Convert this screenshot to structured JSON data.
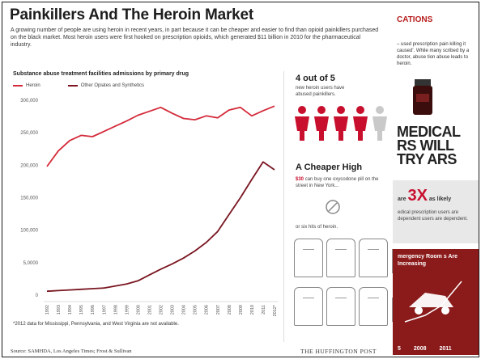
{
  "header": {
    "title": "Painkillers And The Heroin Market",
    "intro": "A growing number of people are using heroin in recent years, in part because it can be cheaper and easier to find than opioid painkillers purchased on the black market. Most heroin users were first hooked on prescription opioids, which generated $11 billion in 2010 for the pharmaceutical industry."
  },
  "colors": {
    "heroin": "#d42a3a",
    "opiates": "#7a1520",
    "accent": "#c8102e"
  },
  "chart_data": {
    "type": "line",
    "title": "Substance abuse treatment facilities admissions by primary drug",
    "categories": [
      "1992",
      "1993",
      "1994",
      "1995",
      "1996",
      "1997",
      "1998",
      "1999",
      "2000",
      "2001",
      "2002",
      "2003",
      "2004",
      "2005",
      "2006",
      "2007",
      "2008",
      "2009",
      "2010",
      "2011",
      "2012*"
    ],
    "series": [
      {
        "name": "Heroin",
        "values": [
          198000,
          222000,
          238000,
          246000,
          244000,
          252000,
          260000,
          268000,
          277000,
          283000,
          289000,
          280000,
          272000,
          270000,
          276000,
          273000,
          285000,
          289000,
          276000,
          284000,
          291000
        ]
      },
      {
        "name": "Other Opiates and Synthetics",
        "values": [
          6000,
          7000,
          8000,
          9000,
          10000,
          11000,
          14000,
          17000,
          22000,
          31000,
          40000,
          48000,
          57000,
          68000,
          81000,
          98000,
          124000,
          150000,
          178000,
          205000,
          193000
        ]
      }
    ],
    "yticks": [
      "300,000",
      "250,000",
      "200,000",
      "150,000",
      "100,000",
      "5,0000",
      "0"
    ],
    "ylim": [
      0,
      300000
    ],
    "grid": false,
    "legend": "top-left",
    "footnote": "*2012 data for Mississippi, Pennsylvania, and West Virginia are not available."
  },
  "sidebar": {
    "stat_head": "4 out of 5",
    "stat_text": "new heroin users have abused painkillers.",
    "cheaper_head": "A Cheaper High",
    "cheaper_price": "$30",
    "cheaper_text": "can buy one oxycodone pill on the street in New York...",
    "or_text": "or six hits of heroin."
  },
  "right_panel": {
    "caption": "CATIONS",
    "text1": "– used prescription pain killing it caused'. While many scribed by a doctor, abuse tion abuse leads to heroin.",
    "big": "MEDICAL RS WILL TRY ARS",
    "box_prefix": "are",
    "box_big": "3X",
    "box_suffix": "as likely",
    "box_text": "edical prescription users are dependent users are dependent.",
    "er_title": "mergency Room s Are Increasing",
    "er_years": [
      "5",
      "2008",
      "2011"
    ]
  },
  "footer": {
    "source": "Source: SAMHDA, Los Angeles Times; Frost & Sullivan",
    "brand": "THE HUFFINGTON POST"
  }
}
